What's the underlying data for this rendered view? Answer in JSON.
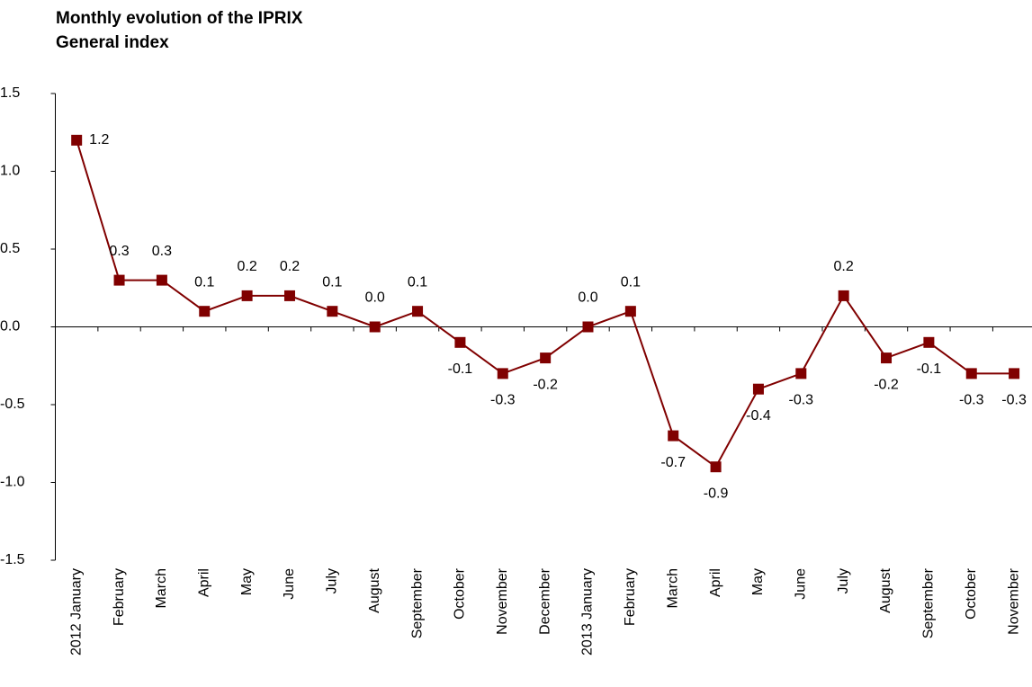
{
  "chart_data": {
    "type": "line",
    "title": "Monthly evolution of the IPRIX",
    "subtitle": "General index",
    "categories": [
      "2012 January",
      "February",
      "March",
      "April",
      "May",
      "June",
      "July",
      "August",
      "September",
      "October",
      "November",
      "December",
      "2013 January",
      "February",
      "March",
      "April",
      "May",
      "June",
      "July",
      "August",
      "September",
      "October",
      "November"
    ],
    "series": [
      {
        "name": "IPRIX",
        "color": "#800000",
        "values": [
          1.2,
          0.3,
          0.3,
          0.1,
          0.2,
          0.2,
          0.1,
          0.0,
          0.1,
          -0.1,
          -0.3,
          -0.2,
          0.0,
          0.1,
          -0.7,
          -0.9,
          -0.4,
          -0.3,
          0.2,
          -0.2,
          -0.1,
          -0.3,
          -0.3
        ],
        "value_labels": [
          "1.2",
          "0.3",
          "0.3",
          "0.1",
          "0.2",
          "0.2",
          "0.1",
          "0.0",
          "0.1",
          "-0.1",
          "-0.3",
          "-0.2",
          "0.0",
          "0.1",
          "-0.7",
          "-0.9",
          "-0.4",
          "-0.3",
          "0.2",
          "-0.2",
          "-0.1",
          "-0.3",
          "-0.3"
        ]
      }
    ],
    "ylim": [
      -1.5,
      1.5
    ],
    "yticks": [
      -1.5,
      {
        "value": -1,
        "label": "-1.0"
      },
      -0.5,
      {
        "value": 0,
        "label": "0.0"
      },
      0.5,
      {
        "value": 1,
        "label": "1.0"
      },
      1.5
    ]
  }
}
